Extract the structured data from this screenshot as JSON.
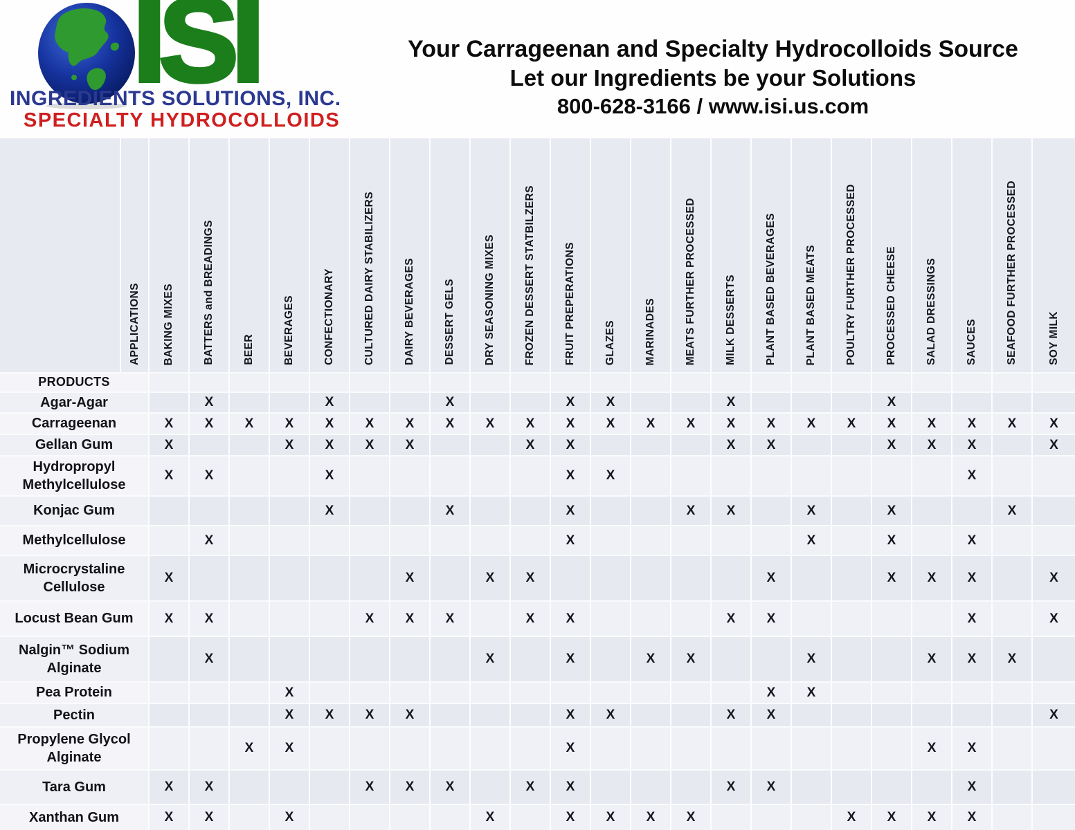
{
  "header": {
    "logo": {
      "isi_text": "ISI",
      "company_name": "INGREDIENTS SOLUTIONS, INC.",
      "subtitle": "SPECIALTY HYDROCOLLOIDS",
      "colors": {
        "isi_green": "#1b7e1b",
        "land_green": "#2f9a2f",
        "company_blue": "#2b3990",
        "subtitle_red": "#cf1f1f",
        "globe_blue": "#16339f"
      }
    },
    "tagline": {
      "line1": "Your Carrageenan and Specialty Hydrocolloids Source",
      "line2": "Let our Ingredients be your Solutions",
      "line3": "800-628-3166 / www.isi.us.com"
    }
  },
  "table": {
    "applications_label": "APPLICATIONS",
    "products_label": "PRODUCTS",
    "mark": "X",
    "columns": [
      "BAKING MIXES",
      "BATTERS and BREADINGS",
      "BEER",
      "BEVERAGES",
      "CONFECTIONARY",
      "CULTURED DAIRY STABILIZERS",
      "DAIRY BEVERAGES",
      "DESSERT GELS",
      "DRY SEASONING MIXES",
      "FROZEN DESSERT STATBILZERS",
      "FRUIT PREPERATIONS",
      "GLAZES",
      "MARINADES",
      "MEATS FURTHER PROCESSED",
      "MILK DESSERTS",
      "PLANT BASED BEVERAGES",
      "PLANT BASED MEATS",
      "POULTRY FURTHER PROCESSED",
      "PROCESSED CHEESE",
      "SALAD DRESSINGS",
      "SAUCES",
      "SEAFOOD FURTHER PROCESSED",
      "SOY MILK"
    ],
    "rows": [
      {
        "product": "Agar-Agar",
        "marks": [
          0,
          1,
          0,
          0,
          1,
          0,
          0,
          1,
          0,
          0,
          1,
          1,
          0,
          0,
          1,
          0,
          0,
          0,
          1,
          0,
          0,
          0,
          0
        ]
      },
      {
        "product": "Carrageenan",
        "marks": [
          1,
          1,
          1,
          1,
          1,
          1,
          1,
          1,
          1,
          1,
          1,
          1,
          1,
          1,
          1,
          1,
          1,
          1,
          1,
          1,
          1,
          1,
          1
        ]
      },
      {
        "product": "Gellan Gum",
        "marks": [
          1,
          0,
          0,
          1,
          1,
          1,
          1,
          0,
          0,
          1,
          1,
          0,
          0,
          0,
          1,
          1,
          0,
          0,
          1,
          1,
          1,
          0,
          1
        ]
      },
      {
        "product": "Hydropropyl Methylcellulose",
        "marks": [
          1,
          1,
          0,
          0,
          1,
          0,
          0,
          0,
          0,
          0,
          1,
          1,
          0,
          0,
          0,
          0,
          0,
          0,
          0,
          0,
          1,
          0,
          0
        ]
      },
      {
        "product": "Konjac Gum",
        "marks": [
          0,
          0,
          0,
          0,
          1,
          0,
          0,
          1,
          0,
          0,
          1,
          0,
          0,
          1,
          1,
          0,
          1,
          0,
          1,
          0,
          0,
          1,
          0
        ]
      },
      {
        "product": "Methylcellulose",
        "marks": [
          0,
          1,
          0,
          0,
          0,
          0,
          0,
          0,
          0,
          0,
          1,
          0,
          0,
          0,
          0,
          0,
          1,
          0,
          1,
          0,
          1,
          0,
          0
        ]
      },
      {
        "product": "Microcrystaline Cellulose",
        "marks": [
          1,
          0,
          0,
          0,
          0,
          0,
          1,
          0,
          1,
          1,
          0,
          0,
          0,
          0,
          0,
          1,
          0,
          0,
          1,
          1,
          1,
          0,
          1
        ]
      },
      {
        "product": "Locust Bean Gum",
        "marks": [
          1,
          1,
          0,
          0,
          0,
          1,
          1,
          1,
          0,
          1,
          1,
          0,
          0,
          0,
          1,
          1,
          0,
          0,
          0,
          0,
          1,
          0,
          1
        ]
      },
      {
        "product": "Nalgin™ Sodium Alginate",
        "marks": [
          0,
          1,
          0,
          0,
          0,
          0,
          0,
          0,
          1,
          0,
          1,
          0,
          1,
          1,
          0,
          0,
          1,
          0,
          0,
          1,
          1,
          1,
          0
        ]
      },
      {
        "product": "Pea Protein",
        "marks": [
          0,
          0,
          0,
          1,
          0,
          0,
          0,
          0,
          0,
          0,
          0,
          0,
          0,
          0,
          0,
          1,
          1,
          0,
          0,
          0,
          0,
          0,
          0
        ]
      },
      {
        "product": "Pectin",
        "marks": [
          0,
          0,
          0,
          1,
          1,
          1,
          1,
          0,
          0,
          0,
          1,
          1,
          0,
          0,
          1,
          1,
          0,
          0,
          0,
          0,
          0,
          0,
          1
        ]
      },
      {
        "product": "Propylene Glycol Alginate",
        "marks": [
          0,
          0,
          1,
          1,
          0,
          0,
          0,
          0,
          0,
          0,
          1,
          0,
          0,
          0,
          0,
          0,
          0,
          0,
          0,
          1,
          1,
          0,
          0
        ]
      },
      {
        "product": "Tara Gum",
        "marks": [
          1,
          1,
          0,
          0,
          0,
          1,
          1,
          1,
          0,
          1,
          1,
          0,
          0,
          0,
          1,
          1,
          0,
          0,
          0,
          0,
          1,
          0,
          0
        ]
      },
      {
        "product": "Xanthan Gum",
        "marks": [
          1,
          1,
          0,
          1,
          0,
          0,
          0,
          0,
          1,
          0,
          1,
          1,
          1,
          1,
          0,
          0,
          0,
          1,
          1,
          1,
          1,
          0,
          0
        ]
      }
    ]
  }
}
